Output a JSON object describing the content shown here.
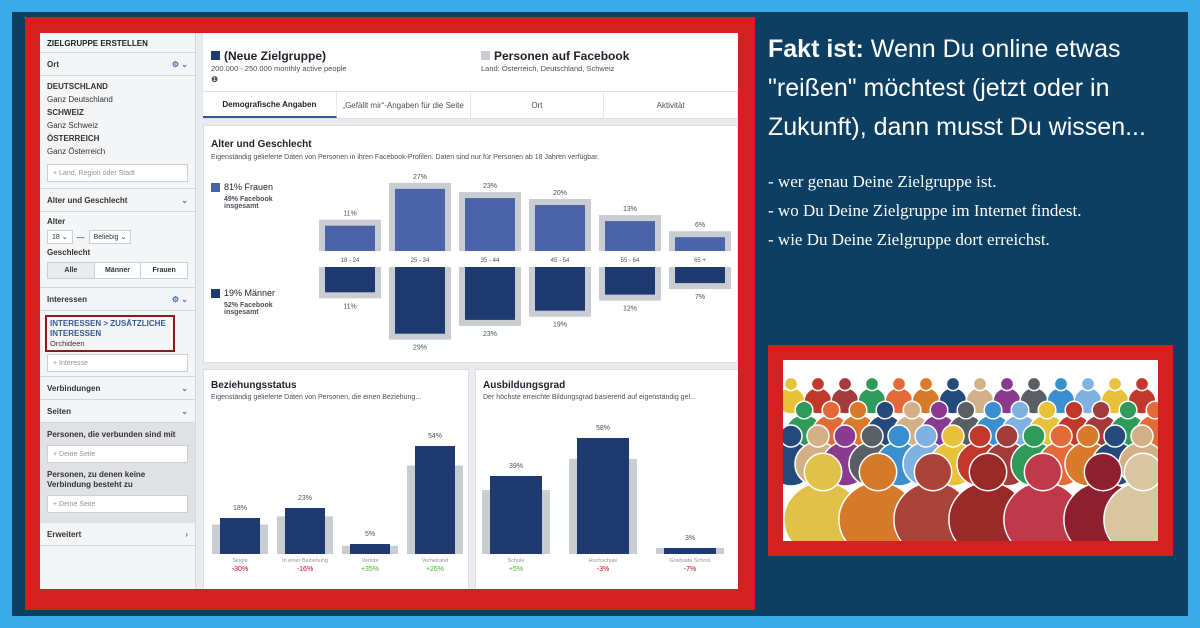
{
  "sidebar": {
    "title": "ZIELGRUPPE ERSTELLEN",
    "location_label": "Ort",
    "locations": [
      {
        "country": "DEUTSCHLAND",
        "scope": "Ganz Deutschland"
      },
      {
        "country": "SCHWEIZ",
        "scope": "Ganz Schweiz"
      },
      {
        "country": "ÖSTERREICH",
        "scope": "Ganz Österreich"
      }
    ],
    "location_placeholder": "Land, Region oder Stadt",
    "age_gender_label": "Alter und Geschlecht",
    "age_label": "Alter",
    "age_from": "18",
    "age_to": "Beliebig",
    "gender_label": "Geschlecht",
    "gender_options": [
      "Alle",
      "Männer",
      "Frauen"
    ],
    "interests_label": "Interessen",
    "interest_path": "INTERESSEN > ZUSÄTZLICHE INTERESSEN",
    "interest_value": "Orchideen",
    "interest_placeholder": "Interesse",
    "connections_label": "Verbindungen",
    "pages_label": "Seiten",
    "connected_label": "Personen, die verbunden sind mit",
    "connected_placeholder": "Deine Seite",
    "not_connected_label": "Personen, zu denen keine Verbindung besteht zu",
    "not_connected_placeholder": "Deine Seite",
    "advanced_label": "Erweitert"
  },
  "header": {
    "audience_name": "(Neue Zielgruppe)",
    "audience_size": "200.000 - 250.000 monthly active people",
    "compare_name": "Personen auf Facebook",
    "compare_location": "Land: Österreich, Deutschland, Schweiz",
    "audience_color": "#1f3a6e",
    "compare_color": "#c9ccd1"
  },
  "tabs": [
    "Demografische Angaben",
    "„Gefällt mir“-Angaben für die Seite",
    "Ort",
    "Aktivität"
  ],
  "age_gender": {
    "title": "Alter und Geschlecht",
    "subtitle": "Eigenständig gelieferte Daten von Personen in ihren Facebook-Profilen. Daten sind nur für Personen ab 18 Jahren verfügbar.",
    "women_label": "81% Frauen",
    "women_sub": "49% Facebook insgesamt",
    "men_label": "19% Männer",
    "men_sub": "52% Facebook insgesamt"
  },
  "relationship": {
    "title": "Beziehungsstatus",
    "subtitle": "Eigenständig gelieferte Daten von Personen, die einen Beziehung..."
  },
  "education": {
    "title": "Ausbildungsgrad",
    "subtitle": "Der höchste erreichte Bildungsgrad basierend auf eigenständig gel..."
  },
  "chart_data": [
    {
      "type": "bar",
      "categories": [
        "18 - 24",
        "25 - 34",
        "35 - 44",
        "45 - 54",
        "55 - 64",
        "65 +"
      ],
      "series": [
        {
          "name": "81% Frauen",
          "values": [
            11,
            27,
            23,
            20,
            13,
            6
          ]
        },
        {
          "name": "19% Männer",
          "values": [
            11,
            29,
            23,
            19,
            12,
            7
          ]
        }
      ],
      "title": "Alter und Geschlecht"
    },
    {
      "type": "bar",
      "categories": [
        "Single",
        "In einer Beziehung",
        "Verlobt",
        "Verheiratet"
      ],
      "values": [
        18,
        23,
        5,
        54
      ],
      "labels": [
        "18%",
        "23%",
        "5%",
        "54%"
      ],
      "deltas": [
        "-30%",
        "-16%",
        "+35%",
        "+26%"
      ],
      "title": "Beziehungsstatus"
    },
    {
      "type": "bar",
      "categories": [
        "Schule",
        "Hochschule",
        "Graduate School"
      ],
      "values": [
        39,
        58,
        3
      ],
      "labels": [
        "39%",
        "58%",
        "3%"
      ],
      "deltas": [
        "+5%",
        "-3%",
        "-7%"
      ],
      "title": "Ausbildungsgrad"
    }
  ],
  "right": {
    "headline_bold": "Fakt ist:",
    "headline_rest": " Wenn Du online etwas \"reißen\" möchtest (jetzt oder in Zukunft), dann musst Du wissen...",
    "bullets": [
      "- wer genau Deine Zielgruppe ist.",
      "- wo Du Deine Zielgruppe im Internet findest.",
      "- wie Du Deine Zielgruppe dort erreichst."
    ]
  }
}
